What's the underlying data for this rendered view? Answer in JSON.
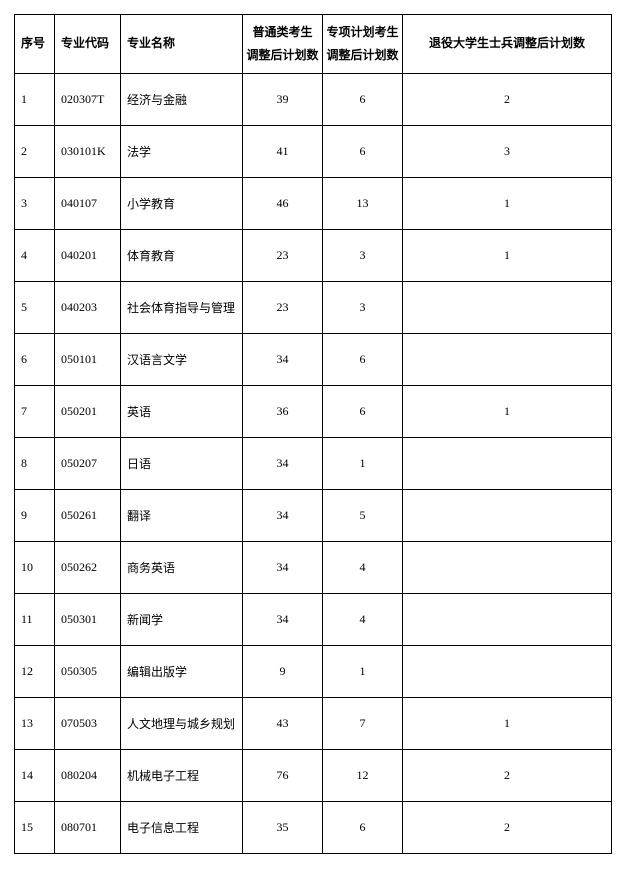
{
  "headers": {
    "seq": "序号",
    "code": "专业代码",
    "name": "专业名称",
    "general_line1": "普通类考生",
    "general_line2": "调整后计划数",
    "special_line1": "专项计划考生",
    "special_line2": "调整后计划数",
    "veteran": "退役大学生士兵调整后计划数"
  },
  "rows": [
    {
      "seq": "1",
      "code": "020307T",
      "name": "经济与金融",
      "general": "39",
      "special": "6",
      "veteran": "2"
    },
    {
      "seq": "2",
      "code": "030101K",
      "name": "法学",
      "general": "41",
      "special": "6",
      "veteran": "3"
    },
    {
      "seq": "3",
      "code": "040107",
      "name": "小学教育",
      "general": "46",
      "special": "13",
      "veteran": "1"
    },
    {
      "seq": "4",
      "code": "040201",
      "name": "体育教育",
      "general": "23",
      "special": "3",
      "veteran": "1"
    },
    {
      "seq": "5",
      "code": "040203",
      "name": "社会体育指导与管理",
      "general": "23",
      "special": "3",
      "veteran": ""
    },
    {
      "seq": "6",
      "code": "050101",
      "name": "汉语言文学",
      "general": "34",
      "special": "6",
      "veteran": ""
    },
    {
      "seq": "7",
      "code": "050201",
      "name": "英语",
      "general": "36",
      "special": "6",
      "veteran": "1"
    },
    {
      "seq": "8",
      "code": "050207",
      "name": "日语",
      "general": "34",
      "special": "1",
      "veteran": ""
    },
    {
      "seq": "9",
      "code": "050261",
      "name": "翻译",
      "general": "34",
      "special": "5",
      "veteran": ""
    },
    {
      "seq": "10",
      "code": "050262",
      "name": "商务英语",
      "general": "34",
      "special": "4",
      "veteran": ""
    },
    {
      "seq": "11",
      "code": "050301",
      "name": "新闻学",
      "general": "34",
      "special": "4",
      "veteran": ""
    },
    {
      "seq": "12",
      "code": "050305",
      "name": "编辑出版学",
      "general": "9",
      "special": "1",
      "veteran": ""
    },
    {
      "seq": "13",
      "code": "070503",
      "name": "人文地理与城乡规划",
      "general": "43",
      "special": "7",
      "veteran": "1"
    },
    {
      "seq": "14",
      "code": "080204",
      "name": "机械电子工程",
      "general": "76",
      "special": "12",
      "veteran": "2"
    },
    {
      "seq": "15",
      "code": "080701",
      "name": "电子信息工程",
      "general": "35",
      "special": "6",
      "veteran": "2"
    }
  ]
}
